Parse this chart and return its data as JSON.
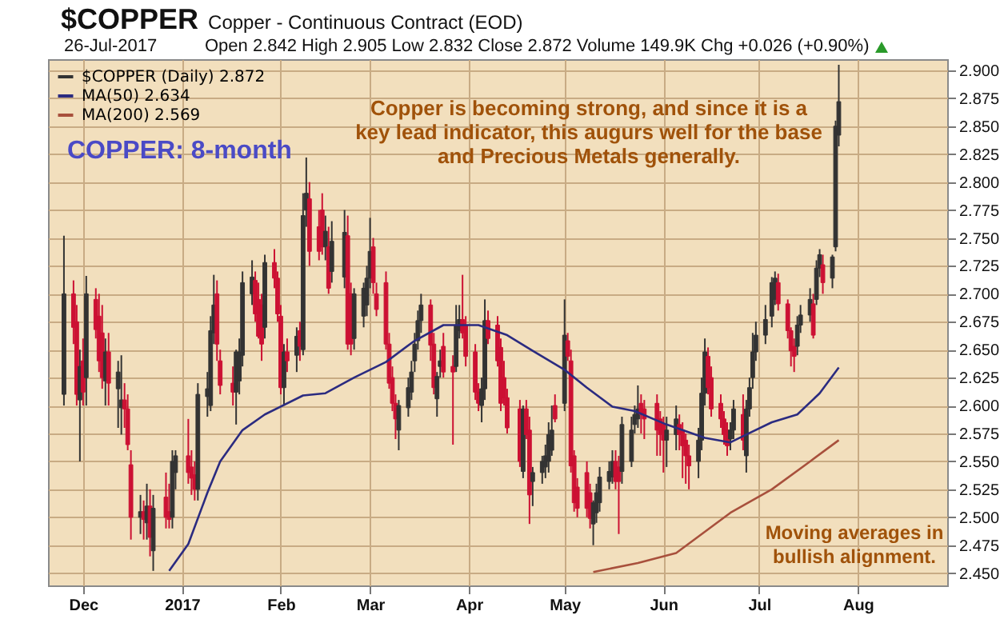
{
  "chart_data": {
    "type": "candlestick",
    "title": "$COPPER",
    "subtitle": "Copper - Continuous Contract (EOD)",
    "annotations": [
      "26-Jul-2017",
      "Open 2.842  High 2.905  Low 2.832  Close 2.872  Volume 149.9K  Chg +0.026 (+0.90%)",
      "COPPER: 8-month",
      "Copper is becoming strong, and since it is a key lead indicator, this augurs well for the base and Precious Metals generally.",
      "Moving averages in bullish alignment."
    ],
    "xlim": [
      "2016-11-20",
      "2017-08-29"
    ],
    "xticks": [
      {
        "value": "2016-12-01",
        "label": "Dec"
      },
      {
        "value": "2017-01-01",
        "label": "2017"
      },
      {
        "value": "2017-02-01",
        "label": "Feb"
      },
      {
        "value": "2017-03-01",
        "label": "Mar"
      },
      {
        "value": "2017-04-01",
        "label": "Apr"
      },
      {
        "value": "2017-05-01",
        "label": "May"
      },
      {
        "value": "2017-06-01",
        "label": "Jun"
      },
      {
        "value": "2017-07-01",
        "label": "Jul"
      },
      {
        "value": "2017-08-01",
        "label": "Aug"
      }
    ],
    "ylim": [
      2.439,
      2.91
    ],
    "yticks": [
      {
        "value": 2.45,
        "label": "2.450"
      },
      {
        "value": 2.475,
        "label": "2.475"
      },
      {
        "value": 2.5,
        "label": "2.500"
      },
      {
        "value": 2.525,
        "label": "2.525"
      },
      {
        "value": 2.55,
        "label": "2.550"
      },
      {
        "value": 2.575,
        "label": "2.575"
      },
      {
        "value": 2.6,
        "label": "2.600"
      },
      {
        "value": 2.625,
        "label": "2.625"
      },
      {
        "value": 2.65,
        "label": "2.650"
      },
      {
        "value": 2.675,
        "label": "2.675"
      },
      {
        "value": 2.7,
        "label": "2.700"
      },
      {
        "value": 2.725,
        "label": "2.725"
      },
      {
        "value": 2.75,
        "label": "2.750"
      },
      {
        "value": 2.775,
        "label": "2.775"
      },
      {
        "value": 2.8,
        "label": "2.800"
      },
      {
        "value": 2.825,
        "label": "2.825"
      },
      {
        "value": 2.85,
        "label": "2.850"
      },
      {
        "value": 2.875,
        "label": "2.875"
      },
      {
        "value": 2.9,
        "label": "2.900"
      }
    ],
    "grid": true,
    "legend": "top left",
    "series": [
      {
        "name": "$COPPER (Daily) 2.872",
        "type": "candlestick",
        "color": "#333333",
        "x": [
          "2016-11-25",
          "2016-11-28",
          "2016-11-29",
          "2016-11-30",
          "2016-12-01",
          "2016-12-02",
          "2016-12-05",
          "2016-12-06",
          "2016-12-07",
          "2016-12-08",
          "2016-12-09",
          "2016-12-12",
          "2016-12-13",
          "2016-12-14",
          "2016-12-15",
          "2016-12-16",
          "2016-12-19",
          "2016-12-20",
          "2016-12-21",
          "2016-12-22",
          "2016-12-23",
          "2016-12-27",
          "2016-12-28",
          "2016-12-29",
          "2016-12-30",
          "2017-01-03",
          "2017-01-04",
          "2017-01-05",
          "2017-01-06",
          "2017-01-09",
          "2017-01-10",
          "2017-01-11",
          "2017-01-12",
          "2017-01-13",
          "2017-01-17",
          "2017-01-18",
          "2017-01-19",
          "2017-01-20",
          "2017-01-23",
          "2017-01-24",
          "2017-01-25",
          "2017-01-26",
          "2017-01-27",
          "2017-01-30",
          "2017-01-31",
          "2017-02-01",
          "2017-02-02",
          "2017-02-03",
          "2017-02-06",
          "2017-02-07",
          "2017-02-08",
          "2017-02-09",
          "2017-02-10",
          "2017-02-13",
          "2017-02-14",
          "2017-02-15",
          "2017-02-16",
          "2017-02-17",
          "2017-02-21",
          "2017-02-22",
          "2017-02-23",
          "2017-02-24",
          "2017-02-27",
          "2017-02-28",
          "2017-03-01",
          "2017-03-02",
          "2017-03-03",
          "2017-03-06",
          "2017-03-07",
          "2017-03-08",
          "2017-03-09",
          "2017-03-10",
          "2017-03-13",
          "2017-03-14",
          "2017-03-15",
          "2017-03-16",
          "2017-03-17",
          "2017-03-20",
          "2017-03-21",
          "2017-03-22",
          "2017-03-23",
          "2017-03-24",
          "2017-03-27",
          "2017-03-28",
          "2017-03-29",
          "2017-03-30",
          "2017-03-31",
          "2017-04-03",
          "2017-04-04",
          "2017-04-05",
          "2017-04-06",
          "2017-04-07",
          "2017-04-10",
          "2017-04-11",
          "2017-04-12",
          "2017-04-13",
          "2017-04-17",
          "2017-04-18",
          "2017-04-19",
          "2017-04-20",
          "2017-04-21",
          "2017-04-24",
          "2017-04-25",
          "2017-04-26",
          "2017-04-27",
          "2017-04-28",
          "2017-05-01",
          "2017-05-02",
          "2017-05-03",
          "2017-05-04",
          "2017-05-05",
          "2017-05-08",
          "2017-05-09",
          "2017-05-10",
          "2017-05-11",
          "2017-05-12",
          "2017-05-15",
          "2017-05-16",
          "2017-05-17",
          "2017-05-18",
          "2017-05-19",
          "2017-05-22",
          "2017-05-23",
          "2017-05-24",
          "2017-05-25",
          "2017-05-26",
          "2017-05-30",
          "2017-05-31",
          "2017-06-01",
          "2017-06-02",
          "2017-06-05",
          "2017-06-06",
          "2017-06-07",
          "2017-06-08",
          "2017-06-09",
          "2017-06-12",
          "2017-06-13",
          "2017-06-14",
          "2017-06-15",
          "2017-06-16",
          "2017-06-19",
          "2017-06-20",
          "2017-06-21",
          "2017-06-22",
          "2017-06-23",
          "2017-06-26",
          "2017-06-27",
          "2017-06-28",
          "2017-06-29",
          "2017-06-30",
          "2017-07-03",
          "2017-07-05",
          "2017-07-06",
          "2017-07-07",
          "2017-07-10",
          "2017-07-11",
          "2017-07-12",
          "2017-07-13",
          "2017-07-14",
          "2017-07-17",
          "2017-07-18",
          "2017-07-19",
          "2017-07-20",
          "2017-07-21",
          "2017-07-24",
          "2017-07-25",
          "2017-07-26"
        ],
        "ohlc": [
          [
            2.61,
            2.752,
            2.6,
            2.7
          ],
          [
            2.7,
            2.712,
            2.655,
            2.67
          ],
          [
            2.675,
            2.69,
            2.6,
            2.61
          ],
          [
            2.605,
            2.65,
            2.55,
            2.635
          ],
          [
            2.64,
            2.66,
            2.6,
            2.612
          ],
          [
            2.625,
            2.716,
            2.6,
            2.7
          ],
          [
            2.695,
            2.705,
            2.66,
            2.668
          ],
          [
            2.68,
            2.7,
            2.63,
            2.64
          ],
          [
            2.665,
            2.69,
            2.615,
            2.625
          ],
          [
            2.622,
            2.66,
            2.6,
            2.648
          ],
          [
            2.648,
            2.665,
            2.6,
            2.62
          ],
          [
            2.615,
            2.64,
            2.58,
            2.63
          ],
          [
            2.598,
            2.645,
            2.574,
            2.605
          ],
          [
            2.605,
            2.62,
            2.58,
            2.597
          ],
          [
            2.597,
            2.61,
            2.56,
            2.565
          ],
          [
            2.547,
            2.56,
            2.48,
            2.5
          ],
          [
            2.5,
            2.52,
            2.485,
            2.505
          ],
          [
            2.505,
            2.515,
            2.48,
            2.498
          ],
          [
            2.495,
            2.53,
            2.48,
            2.51
          ],
          [
            2.51,
            2.525,
            2.465,
            2.482
          ],
          [
            2.47,
            2.52,
            2.452,
            2.508
          ],
          [
            2.518,
            2.54,
            2.49,
            2.5
          ],
          [
            2.505,
            2.53,
            2.49,
            2.498
          ],
          [
            2.5,
            2.56,
            2.49,
            2.55
          ],
          [
            2.54,
            2.56,
            2.525,
            2.555
          ],
          [
            2.555,
            2.588,
            2.53,
            2.54
          ],
          [
            2.545,
            2.56,
            2.52,
            2.535
          ],
          [
            2.538,
            2.55,
            2.515,
            2.525
          ],
          [
            2.525,
            2.62,
            2.515,
            2.61
          ],
          [
            2.608,
            2.63,
            2.59,
            2.615
          ],
          [
            2.6,
            2.68,
            2.595,
            2.667
          ],
          [
            2.665,
            2.717,
            2.655,
            2.69
          ],
          [
            2.7,
            2.712,
            2.64,
            2.655
          ],
          [
            2.64,
            2.65,
            2.61,
            2.618
          ],
          [
            2.62,
            2.635,
            2.6,
            2.612
          ],
          [
            2.612,
            2.65,
            2.583,
            2.648
          ],
          [
            2.622,
            2.66,
            2.61,
            2.648
          ],
          [
            2.645,
            2.72,
            2.635,
            2.71
          ],
          [
            2.7,
            2.73,
            2.69,
            2.715
          ],
          [
            2.712,
            2.72,
            2.675,
            2.682
          ],
          [
            2.695,
            2.71,
            2.66,
            2.662
          ],
          [
            2.69,
            2.7,
            2.64,
            2.655
          ],
          [
            2.67,
            2.735,
            2.66,
            2.728
          ],
          [
            2.728,
            2.74,
            2.705,
            2.714
          ],
          [
            2.714,
            2.72,
            2.675,
            2.682
          ],
          [
            2.68,
            2.69,
            2.61,
            2.616
          ],
          [
            2.616,
            2.655,
            2.6,
            2.648
          ],
          [
            2.648,
            2.66,
            2.63,
            2.64
          ],
          [
            2.645,
            2.67,
            2.63,
            2.662
          ],
          [
            2.667,
            2.675,
            2.64,
            2.653
          ],
          [
            2.65,
            2.79,
            2.645,
            2.77
          ],
          [
            2.775,
            2.822,
            2.76,
            2.79
          ],
          [
            2.785,
            2.8,
            2.725,
            2.738
          ],
          [
            2.76,
            2.775,
            2.73,
            2.738
          ],
          [
            2.775,
            2.79,
            2.735,
            2.742
          ],
          [
            2.742,
            2.77,
            2.73,
            2.756
          ],
          [
            2.742,
            2.76,
            2.7,
            2.705
          ],
          [
            2.72,
            2.765,
            2.71,
            2.747
          ],
          [
            2.715,
            2.775,
            2.705,
            2.755
          ],
          [
            2.752,
            2.77,
            2.65,
            2.655
          ],
          [
            2.7,
            2.71,
            2.645,
            2.655
          ],
          [
            2.66,
            2.705,
            2.65,
            2.7
          ],
          [
            2.68,
            2.71,
            2.67,
            2.705
          ],
          [
            2.69,
            2.725,
            2.68,
            2.714
          ],
          [
            2.714,
            2.768,
            2.705,
            2.738
          ],
          [
            2.742,
            2.75,
            2.7,
            2.71
          ],
          [
            2.7,
            2.71,
            2.68,
            2.686
          ],
          [
            2.71,
            2.72,
            2.65,
            2.655
          ],
          [
            2.655,
            2.665,
            2.615,
            2.62
          ],
          [
            2.625,
            2.635,
            2.595,
            2.602
          ],
          [
            2.602,
            2.61,
            2.57,
            2.588
          ],
          [
            2.578,
            2.605,
            2.56,
            2.6
          ],
          [
            2.598,
            2.625,
            2.59,
            2.616
          ],
          [
            2.612,
            2.64,
            2.605,
            2.63
          ],
          [
            2.64,
            2.665,
            2.63,
            2.655
          ],
          [
            2.658,
            2.685,
            2.65,
            2.676
          ],
          [
            2.676,
            2.7,
            2.665,
            2.69
          ],
          [
            2.69,
            2.695,
            2.64,
            2.654
          ],
          [
            2.655,
            2.665,
            2.61,
            2.616
          ],
          [
            2.606,
            2.63,
            2.59,
            2.626
          ],
          [
            2.635,
            2.65,
            2.625,
            2.64
          ],
          [
            2.653,
            2.665,
            2.625,
            2.63
          ],
          [
            2.635,
            2.645,
            2.565,
            2.63
          ],
          [
            2.635,
            2.69,
            2.63,
            2.672
          ],
          [
            2.667,
            2.69,
            2.66,
            2.677
          ],
          [
            2.677,
            2.717,
            2.66,
            2.665
          ],
          [
            2.672,
            2.68,
            2.635,
            2.644
          ],
          [
            2.648,
            2.655,
            2.605,
            2.612
          ],
          [
            2.612,
            2.62,
            2.595,
            2.602
          ],
          [
            2.6,
            2.625,
            2.585,
            2.615
          ],
          [
            2.615,
            2.695,
            2.605,
            2.676
          ],
          [
            2.676,
            2.685,
            2.655,
            2.66
          ],
          [
            2.672,
            2.68,
            2.635,
            2.64
          ],
          [
            2.652,
            2.66,
            2.595,
            2.602
          ],
          [
            2.625,
            2.64,
            2.6,
            2.607
          ],
          [
            2.607,
            2.615,
            2.575,
            2.58
          ],
          [
            2.597,
            2.605,
            2.545,
            2.55
          ],
          [
            2.541,
            2.6,
            2.535,
            2.597
          ],
          [
            2.597,
            2.605,
            2.57,
            2.574
          ],
          [
            2.578,
            2.59,
            2.494,
            2.52
          ],
          [
            2.532,
            2.545,
            2.51,
            2.54
          ],
          [
            2.54,
            2.555,
            2.53,
            2.55
          ],
          [
            2.545,
            2.565,
            2.535,
            2.555
          ],
          [
            2.55,
            2.585,
            2.54,
            2.574
          ],
          [
            2.56,
            2.6,
            2.555,
            2.578
          ],
          [
            2.6,
            2.61,
            2.585,
            2.588
          ],
          [
            2.602,
            2.695,
            2.595,
            2.663
          ],
          [
            2.658,
            2.665,
            2.64,
            2.644
          ],
          [
            2.64,
            2.65,
            2.54,
            2.546
          ],
          [
            2.555,
            2.56,
            2.505,
            2.513
          ],
          [
            2.527,
            2.535,
            2.5,
            2.508
          ],
          [
            2.54,
            2.55,
            2.5,
            2.508
          ],
          [
            2.522,
            2.53,
            2.49,
            2.499
          ],
          [
            2.494,
            2.515,
            2.475,
            2.513
          ],
          [
            2.504,
            2.53,
            2.495,
            2.522
          ],
          [
            2.513,
            2.545,
            2.505,
            2.536
          ],
          [
            2.532,
            2.55,
            2.525,
            2.541
          ],
          [
            2.536,
            2.56,
            2.53,
            2.55
          ],
          [
            2.55,
            2.56,
            2.525,
            2.532
          ],
          [
            2.545,
            2.555,
            2.485,
            2.532
          ],
          [
            2.541,
            2.59,
            2.53,
            2.583
          ],
          [
            2.55,
            2.59,
            2.545,
            2.578
          ],
          [
            2.583,
            2.6,
            2.575,
            2.592
          ],
          [
            2.588,
            2.618,
            2.58,
            2.597
          ],
          [
            2.602,
            2.61,
            2.575,
            2.592
          ],
          [
            2.597,
            2.605,
            2.57,
            2.588
          ],
          [
            2.602,
            2.61,
            2.555,
            2.578
          ],
          [
            2.588,
            2.595,
            2.555,
            2.574
          ],
          [
            2.583,
            2.59,
            2.54,
            2.569
          ],
          [
            2.569,
            2.59,
            2.545,
            2.578
          ],
          [
            2.574,
            2.6,
            2.56,
            2.588
          ],
          [
            2.583,
            2.592,
            2.56,
            2.574
          ],
          [
            2.578,
            2.585,
            2.535,
            2.564
          ],
          [
            2.569,
            2.575,
            2.53,
            2.555
          ],
          [
            2.555,
            2.565,
            2.525,
            2.546
          ],
          [
            2.55,
            2.58,
            2.535,
            2.569
          ],
          [
            2.569,
            2.625,
            2.56,
            2.611
          ],
          [
            2.611,
            2.66,
            2.6,
            2.648
          ],
          [
            2.644,
            2.652,
            2.61,
            2.616
          ],
          [
            2.625,
            2.635,
            2.59,
            2.597
          ],
          [
            2.602,
            2.61,
            2.58,
            2.588
          ],
          [
            2.588,
            2.595,
            2.565,
            2.574
          ],
          [
            2.578,
            2.585,
            2.555,
            2.564
          ],
          [
            2.57,
            2.585,
            2.56,
            2.578
          ],
          [
            2.578,
            2.605,
            2.57,
            2.597
          ],
          [
            2.592,
            2.61,
            2.56,
            2.569
          ],
          [
            2.555,
            2.605,
            2.54,
            2.597
          ],
          [
            2.597,
            2.625,
            2.59,
            2.616
          ],
          [
            2.625,
            2.665,
            2.615,
            2.648
          ],
          [
            2.648,
            2.675,
            2.64,
            2.663
          ],
          [
            2.663,
            2.69,
            2.655,
            2.677
          ],
          [
            2.68,
            2.715,
            2.67,
            2.71
          ],
          [
            2.695,
            2.72,
            2.69,
            2.714
          ],
          [
            2.71,
            2.718,
            2.685,
            2.691
          ],
          [
            2.691,
            2.695,
            2.66,
            2.667
          ],
          [
            2.667,
            2.67,
            2.635,
            2.649
          ],
          [
            2.653,
            2.66,
            2.63,
            2.644
          ],
          [
            2.653,
            2.68,
            2.645,
            2.672
          ],
          [
            2.672,
            2.69,
            2.665,
            2.681
          ],
          [
            2.681,
            2.705,
            2.675,
            2.695
          ],
          [
            2.691,
            2.7,
            2.66,
            2.663
          ],
          [
            2.695,
            2.73,
            2.69,
            2.723
          ],
          [
            2.723,
            2.74,
            2.715,
            2.735
          ],
          [
            2.726,
            2.735,
            2.7,
            2.71
          ],
          [
            2.714,
            2.735,
            2.705,
            2.733
          ],
          [
            2.742,
            2.855,
            2.738,
            2.85
          ],
          [
            2.842,
            2.905,
            2.832,
            2.872
          ]
        ],
        "colors": [
          "#333333",
          "#cc1133",
          "#cc1133",
          "#333333",
          "#cc1133",
          "#333333",
          "#cc1133",
          "#cc1133",
          "#cc1133",
          "#333333",
          "#cc1133",
          "#333333",
          "#333333",
          "#cc1133",
          "#cc1133",
          "#cc1133",
          "#333333",
          "#cc1133",
          "#333333",
          "#cc1133",
          "#333333",
          "#cc1133",
          "#cc1133",
          "#333333",
          "#333333",
          "#cc1133",
          "#cc1133",
          "#cc1133",
          "#333333",
          "#333333",
          "#333333",
          "#333333",
          "#cc1133",
          "#cc1133",
          "#cc1133",
          "#333333",
          "#333333",
          "#333333",
          "#333333",
          "#cc1133",
          "#cc1133",
          "#cc1133",
          "#333333",
          "#cc1133",
          "#cc1133",
          "#cc1133",
          "#333333",
          "#cc1133",
          "#333333",
          "#cc1133",
          "#333333",
          "#333333",
          "#cc1133",
          "#cc1133",
          "#cc1133",
          "#333333",
          "#cc1133",
          "#333333",
          "#333333",
          "#cc1133",
          "#cc1133",
          "#333333",
          "#333333",
          "#333333",
          "#333333",
          "#cc1133",
          "#cc1133",
          "#cc1133",
          "#cc1133",
          "#cc1133",
          "#cc1133",
          "#333333",
          "#333333",
          "#333333",
          "#333333",
          "#333333",
          "#333333",
          "#cc1133",
          "#cc1133",
          "#333333",
          "#333333",
          "#cc1133",
          "#cc1133",
          "#333333",
          "#333333",
          "#cc1133",
          "#cc1133",
          "#cc1133",
          "#cc1133",
          "#333333",
          "#333333",
          "#cc1133",
          "#cc1133",
          "#cc1133",
          "#cc1133",
          "#cc1133",
          "#cc1133",
          "#333333",
          "#cc1133",
          "#cc1133",
          "#333333",
          "#333333",
          "#333333",
          "#333333",
          "#333333",
          "#cc1133",
          "#333333",
          "#cc1133",
          "#cc1133",
          "#cc1133",
          "#cc1133",
          "#cc1133",
          "#cc1133",
          "#333333",
          "#333333",
          "#333333",
          "#333333",
          "#333333",
          "#cc1133",
          "#cc1133",
          "#333333",
          "#333333",
          "#333333",
          "#333333",
          "#cc1133",
          "#cc1133",
          "#cc1133",
          "#cc1133",
          "#cc1133",
          "#333333",
          "#333333",
          "#cc1133",
          "#cc1133",
          "#cc1133",
          "#cc1133",
          "#333333",
          "#333333",
          "#333333",
          "#cc1133",
          "#cc1133",
          "#cc1133",
          "#cc1133",
          "#cc1133",
          "#333333",
          "#333333",
          "#cc1133",
          "#333333",
          "#333333",
          "#333333",
          "#333333",
          "#333333",
          "#333333",
          "#333333",
          "#cc1133",
          "#cc1133",
          "#cc1133",
          "#cc1133",
          "#333333",
          "#333333",
          "#333333",
          "#cc1133",
          "#333333",
          "#333333",
          "#cc1133",
          "#333333",
          "#333333",
          "#333333"
        ]
      },
      {
        "name": "MA(50) 2.634",
        "type": "line",
        "color": "#2b2b80",
        "x": [
          "2016-12-28",
          "2017-01-03",
          "2017-01-09",
          "2017-01-13",
          "2017-01-20",
          "2017-01-27",
          "2017-02-08",
          "2017-02-15",
          "2017-02-24",
          "2017-03-06",
          "2017-03-15",
          "2017-03-24",
          "2017-04-04",
          "2017-04-13",
          "2017-04-21",
          "2017-05-01",
          "2017-05-08",
          "2017-05-16",
          "2017-05-23",
          "2017-06-02",
          "2017-06-14",
          "2017-06-22",
          "2017-06-27",
          "2017-07-05",
          "2017-07-13",
          "2017-07-20",
          "2017-07-26"
        ],
        "values": [
          2.452,
          2.476,
          2.522,
          2.55,
          2.578,
          2.592,
          2.609,
          2.611,
          2.625,
          2.639,
          2.658,
          2.672,
          2.672,
          2.663,
          2.649,
          2.632,
          2.616,
          2.599,
          2.595,
          2.583,
          2.571,
          2.567,
          2.574,
          2.585,
          2.592,
          2.611,
          2.634
        ]
      },
      {
        "name": "MA(200) 2.569",
        "type": "line",
        "color": "#a8503c",
        "x": [
          "2017-05-10",
          "2017-05-24",
          "2017-06-05",
          "2017-06-22",
          "2017-07-05",
          "2017-07-17",
          "2017-07-26"
        ],
        "values": [
          2.451,
          2.459,
          2.468,
          2.504,
          2.525,
          2.55,
          2.569
        ]
      }
    ]
  }
}
